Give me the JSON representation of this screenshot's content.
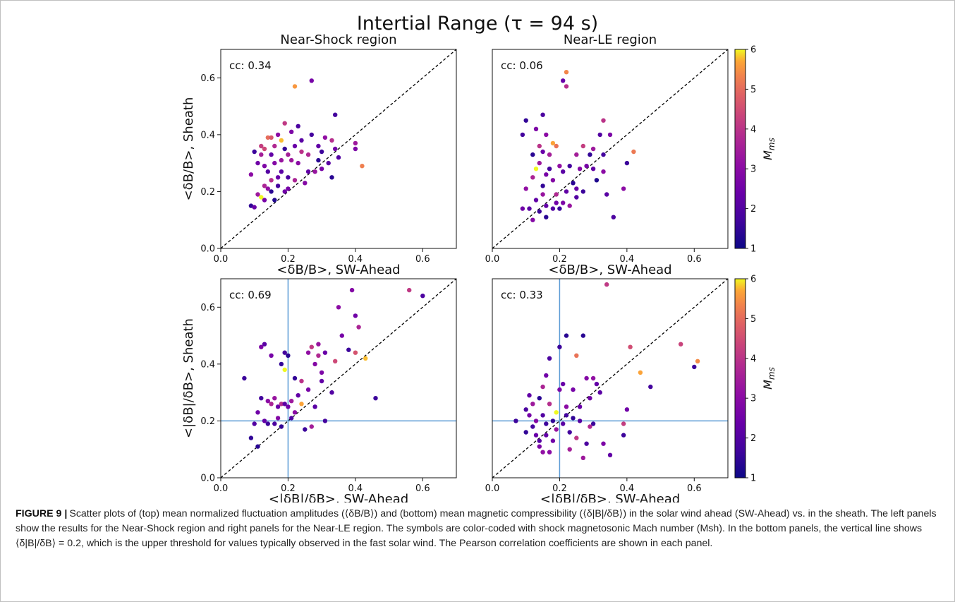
{
  "figure": {
    "title": "Intertial Range (τ = 94 s)",
    "caption_label": "FIGURE 9",
    "caption_separator": " |",
    "caption_text": "Scatter plots of (top) mean normalized fluctuation amplitudes (⟨δB/B⟩) and (bottom) mean magnetic compressibility (⟨δ|B|/δB⟩) in the solar wind ahead (SW-Ahead) vs. in the sheath. The left panels show the results for the Near-Shock region and right panels for the Near-LE region. The symbols are color-coded with shock magnetosonic Mach number (Msh). In the bottom panels, the vertical line shows ⟨δ|B|/δB⟩ = 0.2, which is the upper threshold for values typically observed in the fast solar wind. The Pearson correlation coefficients are shown in each panel."
  },
  "colors": {
    "diagonal_line": "#000000",
    "threshold_line": "#5b9bd5",
    "colormap": "plasma"
  },
  "chart_data": [
    {
      "type": "scatter",
      "title": "Near-Shock region",
      "xlabel": "<δB/B>, SW-Ahead",
      "ylabel": "<δB/B>, Sheath",
      "xlim": [
        0,
        0.7
      ],
      "ylim": [
        0,
        0.7
      ],
      "xticks": [
        "0.0",
        "0.2",
        "0.4",
        "0.6"
      ],
      "yticks": [
        "0.0",
        "0.2",
        "0.4",
        "0.6"
      ],
      "annotation": "cc: 0.34",
      "diagonal": true,
      "threshold_lines": null,
      "colorbar": null,
      "points": [
        [
          0.09,
          0.15,
          1.4
        ],
        [
          0.09,
          0.26,
          2.6
        ],
        [
          0.1,
          0.34,
          1.5
        ],
        [
          0.11,
          0.19,
          2.9
        ],
        [
          0.11,
          0.3,
          2.2
        ],
        [
          0.12,
          0.33,
          3.0
        ],
        [
          0.12,
          0.18,
          6.0
        ],
        [
          0.12,
          0.36,
          3.6
        ],
        [
          0.13,
          0.22,
          3.1
        ],
        [
          0.13,
          0.29,
          2.4
        ],
        [
          0.13,
          0.35,
          3.8
        ],
        [
          0.13,
          0.17,
          2.3
        ],
        [
          0.14,
          0.27,
          1.8
        ],
        [
          0.14,
          0.39,
          4.5
        ],
        [
          0.14,
          0.21,
          2.7
        ],
        [
          0.15,
          0.33,
          2.0
        ],
        [
          0.15,
          0.24,
          3.3
        ],
        [
          0.15,
          0.39,
          4.1
        ],
        [
          0.16,
          0.3,
          2.5
        ],
        [
          0.16,
          0.17,
          1.2
        ],
        [
          0.16,
          0.36,
          3.2
        ],
        [
          0.17,
          0.25,
          2.1
        ],
        [
          0.17,
          0.4,
          2.6
        ],
        [
          0.17,
          0.22,
          1.6
        ],
        [
          0.18,
          0.38,
          5.6
        ],
        [
          0.18,
          0.31,
          2.8
        ],
        [
          0.18,
          0.27,
          1.9
        ],
        [
          0.19,
          0.44,
          3.5
        ],
        [
          0.19,
          0.35,
          1.4
        ],
        [
          0.19,
          0.2,
          2.2
        ],
        [
          0.2,
          0.33,
          3.0
        ],
        [
          0.2,
          0.25,
          1.7
        ],
        [
          0.21,
          0.41,
          2.4
        ],
        [
          0.21,
          0.31,
          2.9
        ],
        [
          0.22,
          0.57,
          5.2
        ],
        [
          0.22,
          0.36,
          2.1
        ],
        [
          0.22,
          0.24,
          3.1
        ],
        [
          0.23,
          0.43,
          1.7
        ],
        [
          0.23,
          0.3,
          2.6
        ],
        [
          0.24,
          0.34,
          3.4
        ],
        [
          0.24,
          0.38,
          1.9
        ],
        [
          0.25,
          0.23,
          2.5
        ],
        [
          0.26,
          0.27,
          2.0
        ],
        [
          0.26,
          0.33,
          3.2
        ],
        [
          0.27,
          0.59,
          2.3
        ],
        [
          0.27,
          0.4,
          1.6
        ],
        [
          0.28,
          0.27,
          2.8
        ],
        [
          0.29,
          0.31,
          1.3
        ],
        [
          0.29,
          0.36,
          2.0
        ],
        [
          0.3,
          0.28,
          2.3
        ],
        [
          0.3,
          0.34,
          1.5
        ],
        [
          0.31,
          0.39,
          2.7
        ],
        [
          0.32,
          0.3,
          1.9
        ],
        [
          0.33,
          0.25,
          1.3
        ],
        [
          0.33,
          0.38,
          3.3
        ],
        [
          0.34,
          0.47,
          1.6
        ],
        [
          0.34,
          0.35,
          2.2
        ],
        [
          0.35,
          0.32,
          1.8
        ],
        [
          0.4,
          0.35,
          2.4
        ],
        [
          0.4,
          0.37,
          2.9
        ],
        [
          0.42,
          0.29,
          4.8
        ],
        [
          0.1,
          0.145,
          2.1
        ],
        [
          0.15,
          0.2,
          1.3
        ],
        [
          0.2,
          0.21,
          2.3
        ]
      ]
    },
    {
      "type": "scatter",
      "title": "Near-LE region",
      "xlabel": "<δB/B>, SW-Ahead",
      "ylabel": "",
      "xlim": [
        0,
        0.7
      ],
      "ylim": [
        0,
        0.7
      ],
      "xticks": [
        "0.0",
        "0.2",
        "0.4",
        "0.6"
      ],
      "yticks": [],
      "annotation": "cc: 0.06",
      "diagonal": true,
      "threshold_lines": null,
      "colorbar": {
        "label": "M_ms",
        "label_main": "M",
        "label_sub": "ms",
        "min": 1,
        "max": 6,
        "ticks": [
          "1",
          "2",
          "3",
          "4",
          "5",
          "6"
        ]
      },
      "points": [
        [
          0.09,
          0.4,
          1.6
        ],
        [
          0.09,
          0.14,
          2.2
        ],
        [
          0.1,
          0.45,
          1.4
        ],
        [
          0.1,
          0.21,
          2.7
        ],
        [
          0.11,
          0.14,
          1.9
        ],
        [
          0.12,
          0.33,
          1.3
        ],
        [
          0.12,
          0.25,
          3.1
        ],
        [
          0.12,
          0.1,
          2.5
        ],
        [
          0.13,
          0.42,
          2.4
        ],
        [
          0.13,
          0.28,
          6.0
        ],
        [
          0.13,
          0.17,
          2.0
        ],
        [
          0.14,
          0.36,
          3.4
        ],
        [
          0.14,
          0.3,
          2.9
        ],
        [
          0.14,
          0.13,
          1.5
        ],
        [
          0.15,
          0.47,
          1.7
        ],
        [
          0.15,
          0.34,
          2.1
        ],
        [
          0.15,
          0.22,
          1.4
        ],
        [
          0.15,
          0.19,
          2.8
        ],
        [
          0.16,
          0.4,
          2.6
        ],
        [
          0.16,
          0.26,
          2.3
        ],
        [
          0.16,
          0.15,
          2.0
        ],
        [
          0.17,
          0.28,
          1.6
        ],
        [
          0.17,
          0.33,
          3.0
        ],
        [
          0.18,
          0.37,
          5.4
        ],
        [
          0.18,
          0.24,
          2.5
        ],
        [
          0.18,
          0.14,
          1.8
        ],
        [
          0.19,
          0.36,
          4.6
        ],
        [
          0.19,
          0.19,
          3.2
        ],
        [
          0.19,
          0.16,
          2.2
        ],
        [
          0.2,
          0.29,
          2.7
        ],
        [
          0.2,
          0.14,
          1.5
        ],
        [
          0.21,
          0.59,
          2.1
        ],
        [
          0.21,
          0.27,
          1.9
        ],
        [
          0.21,
          0.16,
          2.4
        ],
        [
          0.22,
          0.62,
          4.9
        ],
        [
          0.22,
          0.57,
          3.3
        ],
        [
          0.22,
          0.2,
          2.0
        ],
        [
          0.23,
          0.29,
          1.6
        ],
        [
          0.23,
          0.15,
          2.8
        ],
        [
          0.24,
          0.23,
          1.3
        ],
        [
          0.25,
          0.33,
          3.0
        ],
        [
          0.25,
          0.21,
          2.1
        ],
        [
          0.26,
          0.28,
          2.5
        ],
        [
          0.27,
          0.36,
          3.6
        ],
        [
          0.27,
          0.2,
          1.5
        ],
        [
          0.28,
          0.29,
          2.3
        ],
        [
          0.29,
          0.33,
          1.4
        ],
        [
          0.3,
          0.28,
          2.0
        ],
        [
          0.3,
          0.35,
          2.9
        ],
        [
          0.31,
          0.24,
          1.2
        ],
        [
          0.32,
          0.4,
          1.8
        ],
        [
          0.33,
          0.33,
          1.6
        ],
        [
          0.33,
          0.45,
          3.4
        ],
        [
          0.33,
          0.27,
          2.6
        ],
        [
          0.34,
          0.19,
          1.9
        ],
        [
          0.35,
          0.4,
          2.4
        ],
        [
          0.36,
          0.11,
          1.7
        ],
        [
          0.39,
          0.21,
          2.6
        ],
        [
          0.4,
          0.3,
          1.5
        ],
        [
          0.42,
          0.34,
          4.7
        ],
        [
          0.16,
          0.11,
          1.3
        ],
        [
          0.25,
          0.18,
          1.8
        ]
      ]
    },
    {
      "type": "scatter",
      "title": "",
      "xlabel": "<|δB|/δB>, SW-Ahead",
      "ylabel": "<|δB|/δB>, Sheath",
      "xlim": [
        0,
        0.7
      ],
      "ylim": [
        0,
        0.7
      ],
      "xticks": [
        "0.0",
        "0.2",
        "0.4",
        "0.6"
      ],
      "yticks": [
        "0.0",
        "0.2",
        "0.4",
        "0.6"
      ],
      "annotation": "cc: 0.69",
      "diagonal": true,
      "threshold_lines": {
        "x": 0.2,
        "y": 0.2
      },
      "colorbar": null,
      "points": [
        [
          0.07,
          0.35,
          1.5
        ],
        [
          0.09,
          0.14,
          1.4
        ],
        [
          0.1,
          0.19,
          1.8
        ],
        [
          0.11,
          0.11,
          1.3
        ],
        [
          0.11,
          0.23,
          2.2
        ],
        [
          0.12,
          0.28,
          1.6
        ],
        [
          0.12,
          0.46,
          2.4
        ],
        [
          0.13,
          0.2,
          2.0
        ],
        [
          0.13,
          0.47,
          1.9
        ],
        [
          0.14,
          0.27,
          2.6
        ],
        [
          0.14,
          0.19,
          1.5
        ],
        [
          0.15,
          0.26,
          3.1
        ],
        [
          0.15,
          0.43,
          2.3
        ],
        [
          0.16,
          0.19,
          1.7
        ],
        [
          0.16,
          0.28,
          2.8
        ],
        [
          0.17,
          0.25,
          2.1
        ],
        [
          0.17,
          0.21,
          2.5
        ],
        [
          0.18,
          0.4,
          1.4
        ],
        [
          0.18,
          0.26,
          3.3
        ],
        [
          0.19,
          0.38,
          6.0
        ],
        [
          0.19,
          0.26,
          1.9
        ],
        [
          0.19,
          0.44,
          1.6
        ],
        [
          0.2,
          0.25,
          2.2
        ],
        [
          0.2,
          0.43,
          1.3
        ],
        [
          0.21,
          0.27,
          2.9
        ],
        [
          0.22,
          0.23,
          2.6
        ],
        [
          0.22,
          0.35,
          1.4
        ],
        [
          0.23,
          0.29,
          2.0
        ],
        [
          0.24,
          0.34,
          3.4
        ],
        [
          0.24,
          0.26,
          5.4
        ],
        [
          0.25,
          0.17,
          1.5
        ],
        [
          0.26,
          0.44,
          2.7
        ],
        [
          0.26,
          0.31,
          2.3
        ],
        [
          0.27,
          0.46,
          3.5
        ],
        [
          0.27,
          0.18,
          3.0
        ],
        [
          0.28,
          0.4,
          2.5
        ],
        [
          0.28,
          0.25,
          1.9
        ],
        [
          0.29,
          0.43,
          3.2
        ],
        [
          0.29,
          0.47,
          2.8
        ],
        [
          0.3,
          0.37,
          2.4
        ],
        [
          0.3,
          0.34,
          2.0
        ],
        [
          0.31,
          0.2,
          1.6
        ],
        [
          0.31,
          0.44,
          2.1
        ],
        [
          0.33,
          0.3,
          1.8
        ],
        [
          0.34,
          0.41,
          3.8
        ],
        [
          0.35,
          0.6,
          2.6
        ],
        [
          0.36,
          0.5,
          2.3
        ],
        [
          0.38,
          0.45,
          1.5
        ],
        [
          0.39,
          0.66,
          2.5
        ],
        [
          0.4,
          0.44,
          4.0
        ],
        [
          0.4,
          0.57,
          2.2
        ],
        [
          0.41,
          0.53,
          3.1
        ],
        [
          0.43,
          0.42,
          5.6
        ],
        [
          0.46,
          0.28,
          1.5
        ],
        [
          0.56,
          0.66,
          3.5
        ],
        [
          0.6,
          0.64,
          1.7
        ],
        [
          0.18,
          0.18,
          1.4
        ],
        [
          0.21,
          0.21,
          1.8
        ]
      ]
    },
    {
      "type": "scatter",
      "title": "",
      "xlabel": "<|δB|/δB>, SW-Ahead",
      "ylabel": "",
      "xlim": [
        0,
        0.7
      ],
      "ylim": [
        0,
        0.7
      ],
      "xticks": [
        "0.0",
        "0.2",
        "0.4",
        "0.6"
      ],
      "yticks": [],
      "annotation": "cc: 0.33",
      "diagonal": true,
      "threshold_lines": {
        "x": 0.2,
        "y": 0.2
      },
      "colorbar": {
        "label": "M_ms",
        "label_main": "M",
        "label_sub": "ms",
        "min": 1,
        "max": 6,
        "ticks": [
          "1",
          "2",
          "3",
          "4",
          "5",
          "6"
        ]
      },
      "points": [
        [
          0.07,
          0.2,
          1.5
        ],
        [
          0.1,
          0.24,
          1.7
        ],
        [
          0.1,
          0.16,
          1.4
        ],
        [
          0.11,
          0.29,
          2.0
        ],
        [
          0.11,
          0.22,
          2.3
        ],
        [
          0.12,
          0.26,
          2.9
        ],
        [
          0.12,
          0.18,
          1.6
        ],
        [
          0.13,
          0.2,
          2.5
        ],
        [
          0.13,
          0.15,
          2.1
        ],
        [
          0.14,
          0.28,
          1.3
        ],
        [
          0.14,
          0.11,
          2.4
        ],
        [
          0.15,
          0.32,
          3.1
        ],
        [
          0.15,
          0.22,
          1.8
        ],
        [
          0.15,
          0.09,
          2.7
        ],
        [
          0.16,
          0.36,
          2.2
        ],
        [
          0.16,
          0.19,
          1.5
        ],
        [
          0.16,
          0.15,
          2.0
        ],
        [
          0.17,
          0.42,
          1.7
        ],
        [
          0.17,
          0.26,
          3.3
        ],
        [
          0.17,
          0.09,
          2.6
        ],
        [
          0.18,
          0.2,
          1.4
        ],
        [
          0.18,
          0.13,
          2.2
        ],
        [
          0.19,
          0.23,
          6.0
        ],
        [
          0.19,
          0.17,
          2.8
        ],
        [
          0.2,
          0.46,
          1.5
        ],
        [
          0.2,
          0.31,
          2.4
        ],
        [
          0.21,
          0.33,
          2.1
        ],
        [
          0.21,
          0.19,
          1.9
        ],
        [
          0.22,
          0.5,
          1.3
        ],
        [
          0.22,
          0.25,
          2.6
        ],
        [
          0.23,
          0.16,
          1.6
        ],
        [
          0.23,
          0.1,
          3.0
        ],
        [
          0.24,
          0.31,
          2.3
        ],
        [
          0.24,
          0.21,
          1.4
        ],
        [
          0.25,
          0.43,
          4.6
        ],
        [
          0.25,
          0.14,
          3.5
        ],
        [
          0.26,
          0.2,
          1.8
        ],
        [
          0.26,
          0.25,
          2.1
        ],
        [
          0.27,
          0.5,
          1.3
        ],
        [
          0.27,
          0.07,
          2.9
        ],
        [
          0.28,
          0.12,
          1.7
        ],
        [
          0.28,
          0.35,
          2.5
        ],
        [
          0.29,
          0.28,
          2.2
        ],
        [
          0.29,
          0.18,
          3.2
        ],
        [
          0.3,
          0.35,
          2.7
        ],
        [
          0.3,
          0.19,
          1.5
        ],
        [
          0.31,
          0.33,
          2.0
        ],
        [
          0.32,
          0.3,
          1.9
        ],
        [
          0.33,
          0.12,
          2.4
        ],
        [
          0.34,
          0.68,
          3.5
        ],
        [
          0.35,
          0.08,
          2.0
        ],
        [
          0.39,
          0.15,
          1.5
        ],
        [
          0.39,
          0.19,
          3.6
        ],
        [
          0.4,
          0.24,
          2.2
        ],
        [
          0.41,
          0.46,
          3.9
        ],
        [
          0.44,
          0.37,
          5.4
        ],
        [
          0.47,
          0.32,
          1.6
        ],
        [
          0.56,
          0.47,
          3.7
        ],
        [
          0.61,
          0.41,
          5.0
        ],
        [
          0.6,
          0.39,
          1.5
        ],
        [
          0.14,
          0.13,
          1.8
        ],
        [
          0.22,
          0.22,
          1.6
        ]
      ]
    }
  ]
}
